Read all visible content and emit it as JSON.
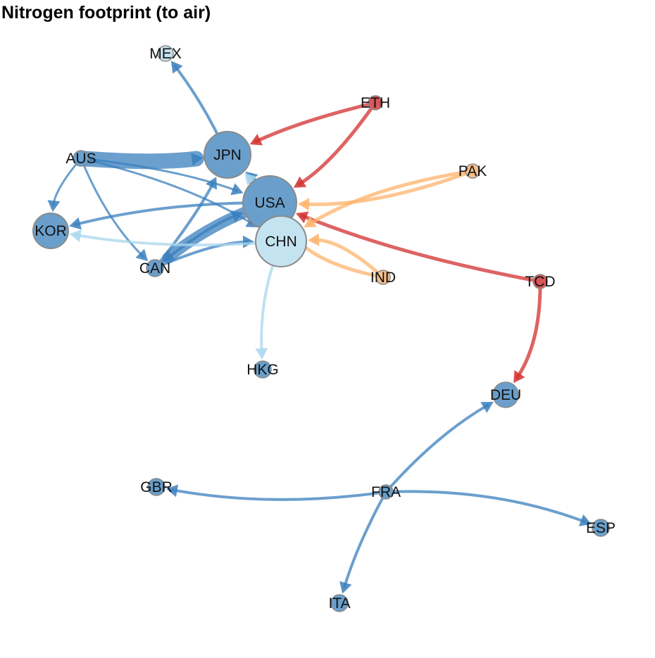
{
  "title": "Nitrogen footprint (to air)",
  "colors": {
    "blue": "#3a7fbd",
    "light_blue": "#a9d7ec",
    "red": "#d32f2f",
    "orange": "#fdb36b",
    "node_blue": "#6a9fcb",
    "node_light": "#c4e3f0",
    "node_red": "#d9575a",
    "node_orange": "#f7bf8c",
    "node_stroke": "#8a8a8a"
  },
  "nodes": [
    {
      "id": "MEX",
      "label": "MEX",
      "fill": "light"
    },
    {
      "id": "ETH",
      "label": "ETH",
      "fill": "red"
    },
    {
      "id": "JPN",
      "label": "JPN",
      "fill": "blue"
    },
    {
      "id": "AUS",
      "label": "AUS",
      "fill": "blue"
    },
    {
      "id": "PAK",
      "label": "PAK",
      "fill": "orange"
    },
    {
      "id": "USA",
      "label": "USA",
      "fill": "blue"
    },
    {
      "id": "KOR",
      "label": "KOR",
      "fill": "blue"
    },
    {
      "id": "CHN",
      "label": "CHN",
      "fill": "light"
    },
    {
      "id": "CAN",
      "label": "CAN",
      "fill": "blue"
    },
    {
      "id": "IND",
      "label": "IND",
      "fill": "orange"
    },
    {
      "id": "TCD",
      "label": "TCD",
      "fill": "red"
    },
    {
      "id": "HKG",
      "label": "HKG",
      "fill": "blue"
    },
    {
      "id": "DEU",
      "label": "DEU",
      "fill": "blue"
    },
    {
      "id": "GBR",
      "label": "GBR",
      "fill": "blue"
    },
    {
      "id": "FRA",
      "label": "FRA",
      "fill": "blue"
    },
    {
      "id": "ESP",
      "label": "ESP",
      "fill": "blue"
    },
    {
      "id": "ITA",
      "label": "ITA",
      "fill": "blue"
    }
  ],
  "edges": [
    {
      "from": "AUS",
      "to": "JPN",
      "color": "blue"
    },
    {
      "from": "AUS",
      "to": "USA",
      "color": "blue"
    },
    {
      "from": "AUS",
      "to": "CHN",
      "color": "blue"
    },
    {
      "from": "AUS",
      "to": "KOR",
      "color": "blue"
    },
    {
      "from": "AUS",
      "to": "CAN",
      "color": "blue"
    },
    {
      "from": "JPN",
      "to": "MEX",
      "color": "blue"
    },
    {
      "from": "USA",
      "to": "JPN",
      "color": "blue"
    },
    {
      "from": "USA",
      "to": "KOR",
      "color": "blue"
    },
    {
      "from": "USA",
      "to": "CAN",
      "color": "blue"
    },
    {
      "from": "CAN",
      "to": "USA",
      "color": "blue"
    },
    {
      "from": "CAN",
      "to": "JPN",
      "color": "blue"
    },
    {
      "from": "CAN",
      "to": "CHN",
      "color": "blue"
    },
    {
      "from": "CHN",
      "to": "KOR",
      "color": "light_blue"
    },
    {
      "from": "CHN",
      "to": "HKG",
      "color": "light_blue"
    },
    {
      "from": "CHN",
      "to": "JPN",
      "color": "light_blue"
    },
    {
      "from": "ETH",
      "to": "JPN",
      "color": "red"
    },
    {
      "from": "ETH",
      "to": "USA",
      "color": "red"
    },
    {
      "from": "TCD",
      "to": "USA",
      "color": "red"
    },
    {
      "from": "TCD",
      "to": "DEU",
      "color": "red"
    },
    {
      "from": "PAK",
      "to": "USA",
      "color": "orange"
    },
    {
      "from": "PAK",
      "to": "CHN",
      "color": "orange"
    },
    {
      "from": "IND",
      "to": "USA",
      "color": "orange"
    },
    {
      "from": "IND",
      "to": "CHN",
      "color": "orange"
    },
    {
      "from": "FRA",
      "to": "DEU",
      "color": "blue"
    },
    {
      "from": "FRA",
      "to": "GBR",
      "color": "blue"
    },
    {
      "from": "FRA",
      "to": "ESP",
      "color": "blue"
    },
    {
      "from": "FRA",
      "to": "ITA",
      "color": "blue"
    }
  ]
}
